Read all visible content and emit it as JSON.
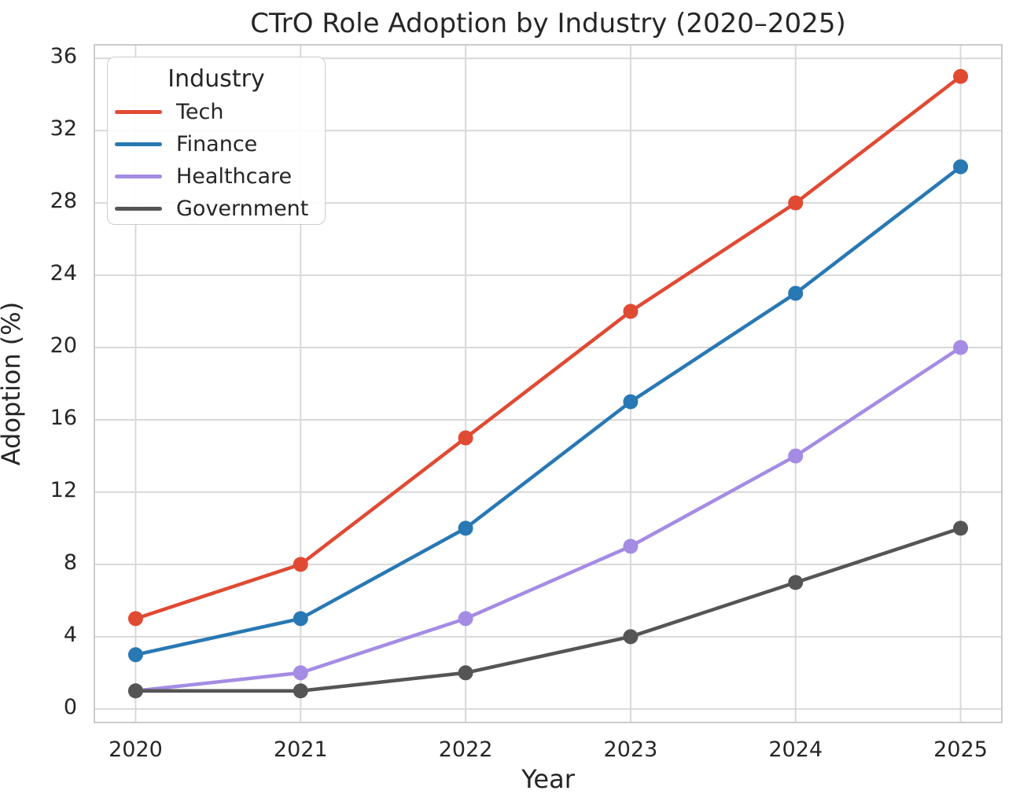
{
  "chart_data": {
    "type": "line",
    "title": "CTrO Role Adoption by Industry (2020–2025)",
    "xlabel": "Year",
    "ylabel": "Adoption (%)",
    "x": [
      2020,
      2021,
      2022,
      2023,
      2024,
      2025
    ],
    "series": [
      {
        "name": "Tech",
        "color": "#e04a33",
        "values": [
          5,
          8,
          15,
          22,
          28,
          35
        ]
      },
      {
        "name": "Finance",
        "color": "#2878b4",
        "values": [
          3,
          5,
          10,
          17,
          23,
          30
        ]
      },
      {
        "name": "Healthcare",
        "color": "#a48ce4",
        "values": [
          1,
          2,
          5,
          9,
          14,
          20
        ]
      },
      {
        "name": "Government",
        "color": "#555555",
        "values": [
          1,
          1,
          2,
          4,
          7,
          10
        ]
      }
    ],
    "x_ticks": [
      "2020",
      "2021",
      "2022",
      "2023",
      "2024",
      "2025"
    ],
    "y_ticks": [
      0,
      4,
      8,
      12,
      16,
      20,
      24,
      28,
      32,
      36
    ],
    "xlim": [
      2019.75,
      2025.25
    ],
    "ylim": [
      -0.75,
      36.75
    ],
    "grid": true,
    "legend": {
      "title": "Industry",
      "position": "upper-left"
    },
    "marker": "circle"
  },
  "style": {
    "background_color": "#ffffff",
    "grid_color": "#d9d9d9",
    "spine_color": "#cbcbcb",
    "text_color": "#262626",
    "line_width": 4.5,
    "marker_radius": 9.5
  }
}
